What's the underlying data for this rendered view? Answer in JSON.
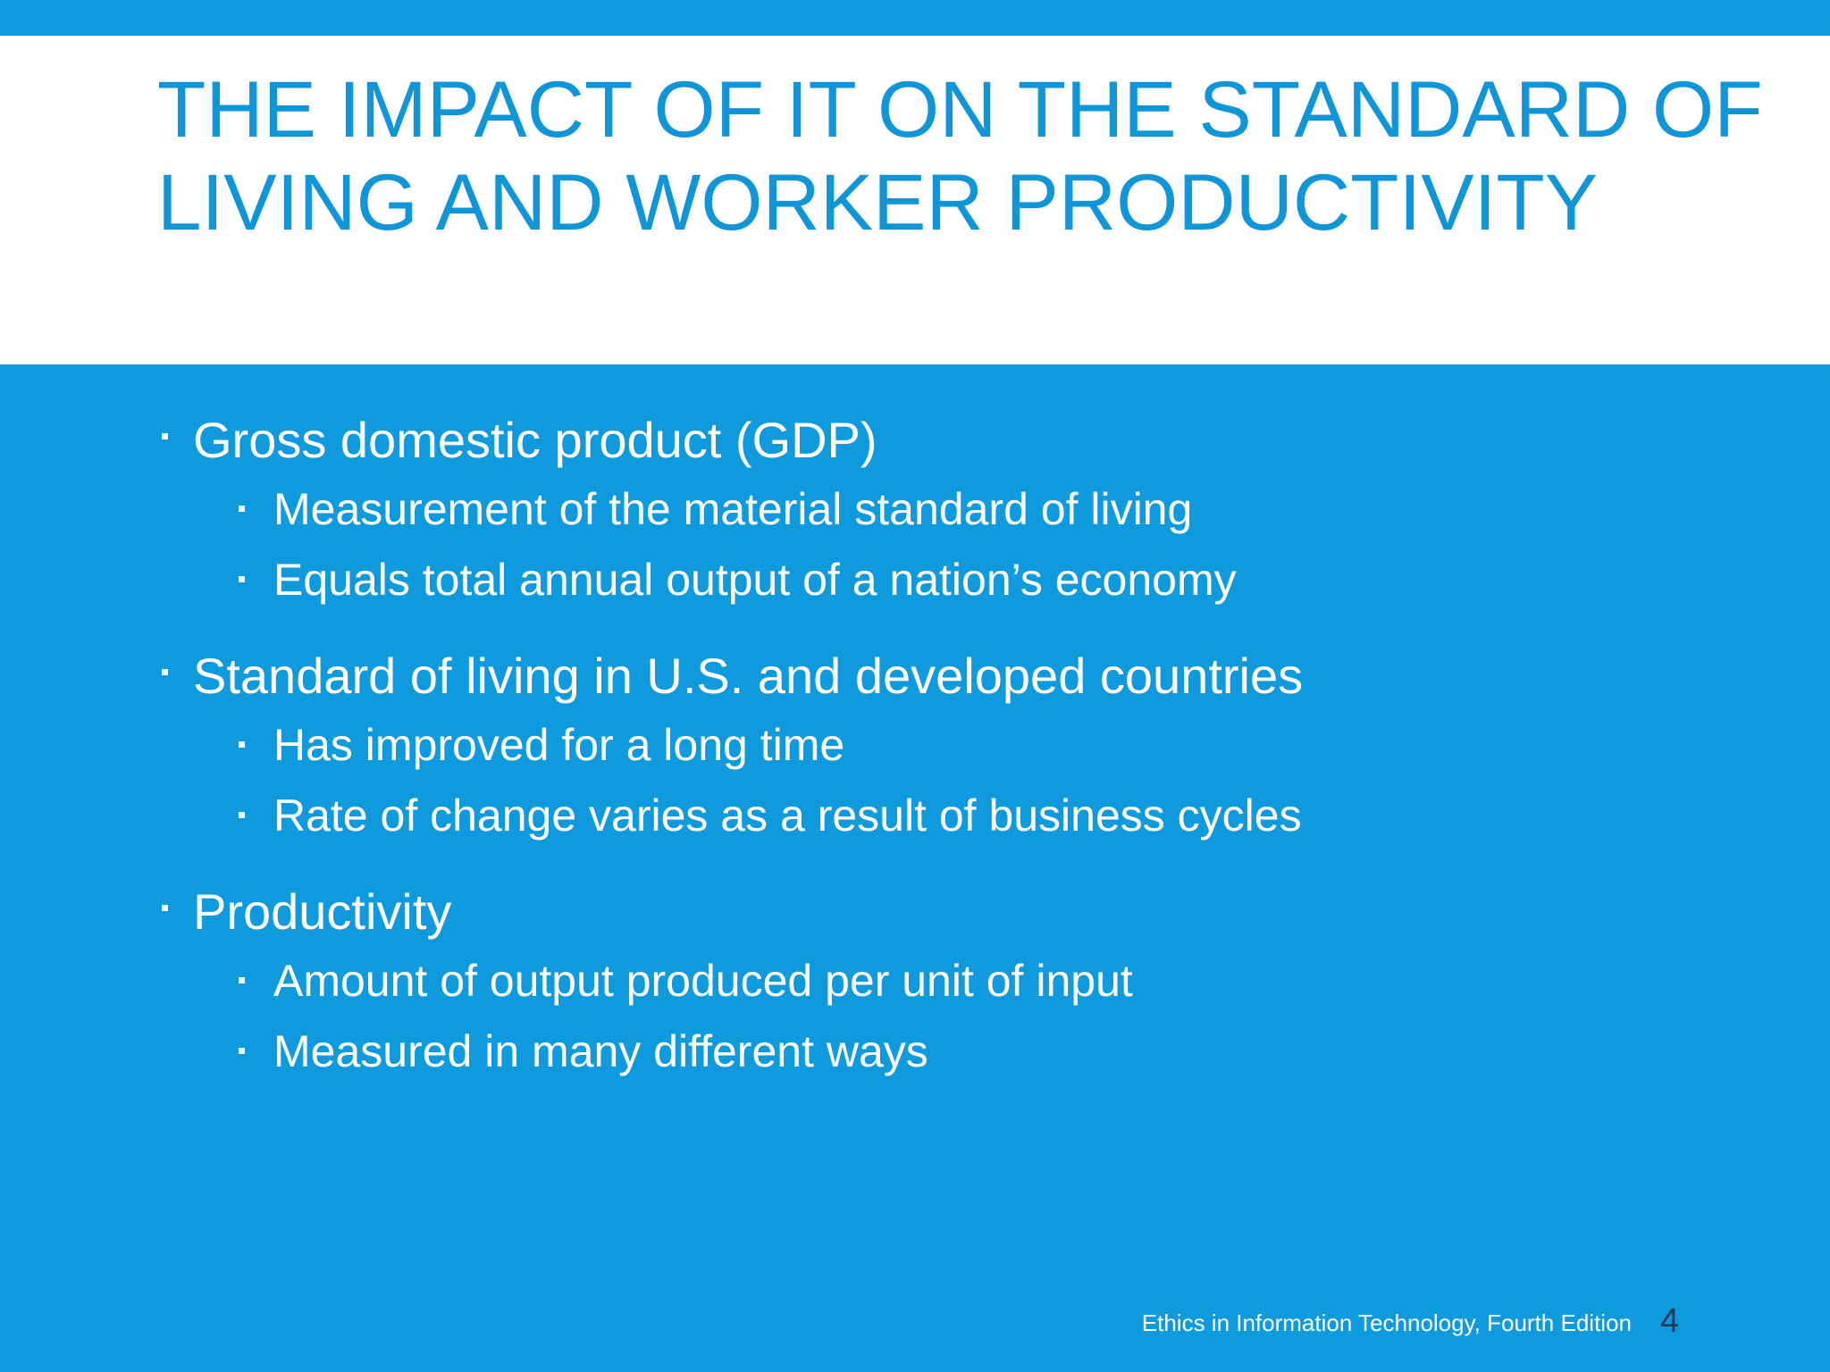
{
  "slide": {
    "title": "THE IMPACT OF IT ON THE STANDARD OF LIVING AND WORKER PRODUCTIVITY",
    "bullets": [
      {
        "text": "Gross domestic product (GDP)",
        "sub": [
          "Measurement of the material standard of living",
          "Equals total annual output of a nation’s economy"
        ]
      },
      {
        "text": "Standard of living in U.S. and developed countries",
        "sub": [
          "Has improved for a long time",
          "Rate of change varies as a result of business cycles"
        ]
      },
      {
        "text": "Productivity",
        "sub": [
          "Amount of output produced per unit of input",
          "Measured in many different ways"
        ]
      }
    ],
    "footer": "Ethics in Information Technology, Fourth Edition",
    "page_number": "4"
  },
  "colors": {
    "background": "#0f9ade",
    "title": "#0f95d8",
    "text": "#ffffff",
    "page_number": "#1d3a52"
  }
}
